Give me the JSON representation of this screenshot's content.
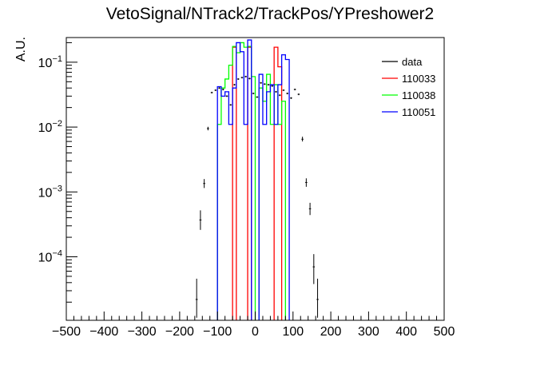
{
  "chart_data": {
    "type": "histogram",
    "title": "VetoSignal/NTrack2/TrackPos/YPreshower2",
    "ylabel": "A.U.",
    "xlabel": "",
    "xlim": [
      -500,
      500
    ],
    "ylim": [
      1.05e-05,
      0.24
    ],
    "yscale": "log",
    "bin_width": 10,
    "x_ticks": [
      -500,
      -400,
      -300,
      -200,
      -100,
      0,
      100,
      200,
      300,
      400,
      500
    ],
    "x_tick_labels": [
      "−500",
      "−400",
      "−300",
      "−200",
      "−100",
      "0",
      "100",
      "200",
      "300",
      "400",
      "500"
    ],
    "y_ticks": [
      {
        "value": 0.1,
        "base": "10",
        "exp": "−1"
      },
      {
        "value": 0.01,
        "base": "10",
        "exp": "−2"
      },
      {
        "value": 0.001,
        "base": "10",
        "exp": "−3"
      },
      {
        "value": 0.0001,
        "base": "10",
        "exp": "−4"
      }
    ],
    "legend_position": "top-right",
    "series": [
      {
        "name": "data",
        "kind": "points",
        "color": "#000000",
        "points": [
          {
            "x": -155,
            "y": 2.2e-05,
            "lo": 1.15e-05,
            "hi": 4.6e-05
          },
          {
            "x": -145,
            "y": 0.00037,
            "lo": 0.00026,
            "hi": 0.00052
          },
          {
            "x": -135,
            "y": 0.00135,
            "lo": 0.00115,
            "hi": 0.00158
          },
          {
            "x": -125,
            "y": 0.0095,
            "lo": 0.0089,
            "hi": 0.0101
          },
          {
            "x": -115,
            "y": 0.034,
            "lo": 0.033,
            "hi": 0.035
          },
          {
            "x": -105,
            "y": 0.037
          },
          {
            "x": -95,
            "y": 0.04
          },
          {
            "x": -85,
            "y": 0.038
          },
          {
            "x": -75,
            "y": 0.03
          },
          {
            "x": -65,
            "y": 0.022
          },
          {
            "x": -55,
            "y": 0.045
          },
          {
            "x": -45,
            "y": 0.055
          },
          {
            "x": -35,
            "y": 0.058
          },
          {
            "x": -25,
            "y": 0.06
          },
          {
            "x": -15,
            "y": 0.056
          },
          {
            "x": -5,
            "y": 0.033
          },
          {
            "x": 5,
            "y": 0.029
          },
          {
            "x": 15,
            "y": 0.048
          },
          {
            "x": 25,
            "y": 0.046
          },
          {
            "x": 35,
            "y": 0.045
          },
          {
            "x": 45,
            "y": 0.043
          },
          {
            "x": 55,
            "y": 0.035
          },
          {
            "x": 65,
            "y": 0.031
          },
          {
            "x": 75,
            "y": 0.037
          },
          {
            "x": 85,
            "y": 0.033
          },
          {
            "x": 95,
            "y": 0.028
          },
          {
            "x": 105,
            "y": 0.038
          },
          {
            "x": 115,
            "y": 0.032
          },
          {
            "x": 125,
            "y": 0.0065,
            "lo": 0.006,
            "hi": 0.0071
          },
          {
            "x": 135,
            "y": 0.0014,
            "lo": 0.0012,
            "hi": 0.00162
          },
          {
            "x": 145,
            "y": 0.00055,
            "lo": 0.00044,
            "hi": 0.00068
          },
          {
            "x": 155,
            "y": 7e-05,
            "lo": 3.8e-05,
            "hi": 0.00011
          },
          {
            "x": 165,
            "y": 2.2e-05,
            "lo": 1.15e-05,
            "hi": 4.6e-05
          }
        ]
      },
      {
        "name": "110033",
        "kind": "step",
        "color": "#ff0000",
        "bins": [
          {
            "lo": -60,
            "hi": -50,
            "y": 0.17
          },
          {
            "lo": -20,
            "hi": -10,
            "y": 0.17
          },
          {
            "lo": 50,
            "hi": 60,
            "y": 0.17
          },
          {
            "lo": 60,
            "hi": 70,
            "y": 0.085
          }
        ]
      },
      {
        "name": "110038",
        "kind": "step",
        "color": "#00ff00",
        "bins": [
          {
            "lo": -100,
            "hi": -90,
            "y": 0.011
          },
          {
            "lo": -90,
            "hi": -80,
            "y": 0.04
          },
          {
            "lo": -80,
            "hi": -70,
            "y": 0.055
          },
          {
            "lo": -70,
            "hi": -60,
            "y": 0.09
          },
          {
            "lo": -60,
            "hi": -50,
            "y": 0.175
          },
          {
            "lo": -50,
            "hi": -40,
            "y": 0.14
          },
          {
            "lo": -40,
            "hi": -30,
            "y": 0.2
          },
          {
            "lo": -30,
            "hi": -20,
            "y": 0.17
          },
          {
            "lo": -20,
            "hi": -10,
            "y": 0.175
          },
          {
            "lo": -10,
            "hi": 0,
            "y": 0.06
          },
          {
            "lo": 10,
            "hi": 20,
            "y": 0.04
          },
          {
            "lo": 20,
            "hi": 30,
            "y": 0.025
          },
          {
            "lo": 30,
            "hi": 40,
            "y": 0.065
          },
          {
            "lo": 40,
            "hi": 50,
            "y": 0.011
          },
          {
            "lo": 50,
            "hi": 60,
            "y": 0.045
          },
          {
            "lo": 60,
            "hi": 70,
            "y": 0.011
          },
          {
            "lo": 70,
            "hi": 80,
            "y": 0.025
          }
        ]
      },
      {
        "name": "110051",
        "kind": "step",
        "color": "#0000ff",
        "bins": [
          {
            "lo": -100,
            "hi": -90,
            "y": 0.042
          },
          {
            "lo": -90,
            "hi": -80,
            "y": 0.03
          },
          {
            "lo": -80,
            "hi": -70,
            "y": 0.035
          },
          {
            "lo": -70,
            "hi": -60,
            "y": 0.011
          },
          {
            "lo": -60,
            "hi": -50,
            "y": 0.04
          },
          {
            "lo": -50,
            "hi": -40,
            "y": 0.2
          },
          {
            "lo": -40,
            "hi": -30,
            "y": 0.145
          },
          {
            "lo": -30,
            "hi": -20,
            "y": 0.011
          },
          {
            "lo": -20,
            "hi": -10,
            "y": 0.22
          },
          {
            "lo": 10,
            "hi": 20,
            "y": 0.065
          },
          {
            "lo": 20,
            "hi": 30,
            "y": 0.011
          },
          {
            "lo": 30,
            "hi": 40,
            "y": 0.035
          },
          {
            "lo": 40,
            "hi": 50,
            "y": 0.045
          },
          {
            "lo": 50,
            "hi": 60,
            "y": 0.011
          },
          {
            "lo": 60,
            "hi": 70,
            "y": 0.045
          },
          {
            "lo": 70,
            "hi": 80,
            "y": 0.13
          },
          {
            "lo": 80,
            "hi": 90,
            "y": 0.11
          }
        ]
      }
    ]
  }
}
